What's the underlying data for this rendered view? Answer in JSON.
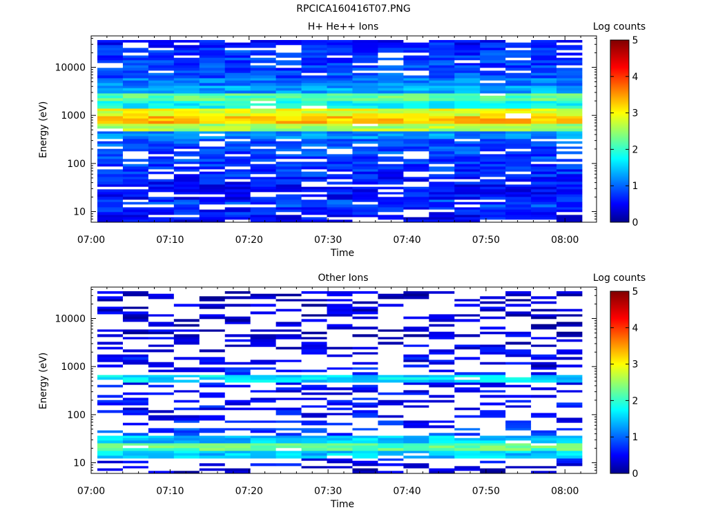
{
  "page": {
    "title": "RPCICA160416T07.PNG"
  },
  "chart_data": [
    {
      "type": "heatmap",
      "title": "H+ He++ Ions",
      "xlabel": "Time",
      "ylabel": "Energy (eV)",
      "x_ticks": [
        "07:00",
        "07:10",
        "07:20",
        "07:30",
        "07:40",
        "07:50",
        "08:00"
      ],
      "y_ticks": [
        "10",
        "100",
        "1000",
        "10000"
      ],
      "y_scale": "log",
      "ylim": [
        6,
        45000
      ],
      "colorbar": {
        "label": "Log counts",
        "range": [
          0,
          5
        ],
        "ticks": [
          "0",
          "1",
          "2",
          "3",
          "4",
          "5"
        ]
      },
      "time_range_min": [
        0,
        64
      ],
      "time_bins": 19,
      "energy_bins": 24,
      "profile": [
        0.5,
        0.6,
        0.8,
        0.55,
        0.55,
        0.6,
        0.7,
        0.75,
        0.8,
        0.85,
        0.9,
        1.2,
        2.6,
        3.3,
        2.9,
        1.8,
        2.2,
        1.3,
        1.1,
        0.9,
        0.8,
        0.8,
        0.75,
        0.6
      ],
      "sparsity": 0.12
    },
    {
      "type": "heatmap",
      "title": "Other Ions",
      "xlabel": "Time",
      "ylabel": "Energy (eV)",
      "x_ticks": [
        "07:00",
        "07:10",
        "07:20",
        "07:30",
        "07:40",
        "07:50",
        "08:00"
      ],
      "y_ticks": [
        "10",
        "100",
        "1000",
        "10000"
      ],
      "y_scale": "log",
      "ylim": [
        6,
        45000
      ],
      "colorbar": {
        "label": "Log counts",
        "range": [
          0,
          5
        ],
        "ticks": [
          "0",
          "1",
          "2",
          "3",
          "4",
          "5"
        ]
      },
      "time_range_min": [
        0,
        64
      ],
      "time_bins": 19,
      "energy_bins": 24,
      "profile": [
        0.3,
        0.5,
        1.5,
        2.2,
        1.5,
        0.8,
        0.6,
        0.55,
        0.5,
        0.5,
        0.45,
        0.5,
        1.6,
        0.6,
        0.4,
        0.5,
        0.35,
        0.3,
        0.3,
        0.3,
        0.25,
        0.3,
        0.3,
        0.25
      ],
      "sparsity": 0.45
    }
  ],
  "colors": {
    "colormap": [
      "#00008f",
      "#0000ff",
      "#00ffff",
      "#ffff00",
      "#ff0000",
      "#800000"
    ]
  }
}
